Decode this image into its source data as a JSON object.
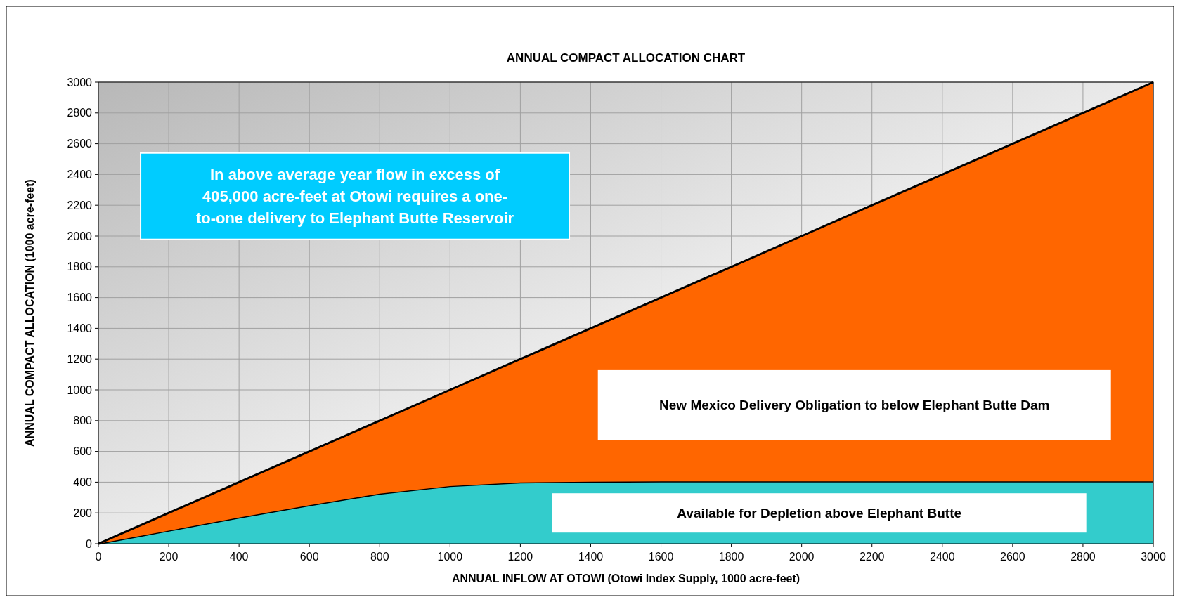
{
  "chart_data": {
    "type": "area",
    "title": "ANNUAL  COMPACT  ALLOCATION  CHART",
    "xlabel": "ANNUAL  INFLOW  AT OTOWI (Otowi Index Supply,  1000 acre-feet)",
    "ylabel": "ANNUAL  COMPACT  ALLOCATION   (1000 acre-feet)",
    "x": [
      0,
      200,
      400,
      600,
      800,
      1000,
      1200,
      1400,
      1600,
      1800,
      2000,
      2200,
      2400,
      2600,
      2800,
      3000
    ],
    "stacked": true,
    "series": [
      {
        "name": "Available for Depletion above Elephant Butte",
        "color": "#33cccc",
        "values": [
          0,
          85,
          170,
          250,
          325,
          375,
          398,
          403,
          405,
          405,
          405,
          405,
          405,
          405,
          405,
          405
        ]
      },
      {
        "name": "New Mexico Delivery Obligation to below Elephant Butte Dam",
        "color": "#ff6600",
        "values": [
          0,
          115,
          230,
          350,
          475,
          625,
          802,
          997,
          1195,
          1395,
          1595,
          1795,
          1995,
          2195,
          2395,
          2595
        ]
      }
    ],
    "annotations": [
      "In above average year flow in excess of 405,000 acre-feet  at Otowi  requires a one-to-one delivery  to Elephant  Butte Reservoir"
    ],
    "xlim": [
      0,
      3000
    ],
    "ylim": [
      0,
      3000
    ],
    "xticks": [
      0,
      200,
      400,
      600,
      800,
      1000,
      1200,
      1400,
      1600,
      1800,
      2000,
      2200,
      2400,
      2600,
      2800,
      3000
    ],
    "yticks": [
      0,
      200,
      400,
      600,
      800,
      1000,
      1200,
      1400,
      1600,
      1800,
      2000,
      2200,
      2400,
      2600,
      2800,
      3000
    ],
    "grid": true
  }
}
